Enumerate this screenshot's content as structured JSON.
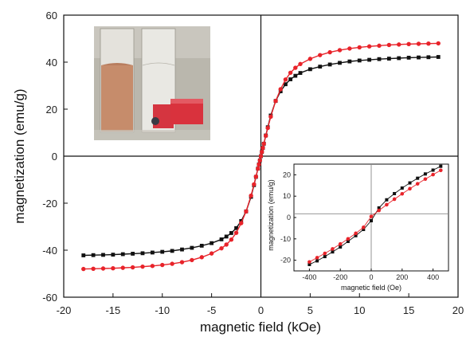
{
  "chart_data": [
    {
      "type": "scatter",
      "title": "",
      "xlabel": "magnetic field (kOe)",
      "ylabel": "magnetization (emu/g)",
      "xlim": [
        -20,
        20
      ],
      "ylim": [
        -60,
        60
      ],
      "xticks": [
        -20,
        -15,
        -10,
        -5,
        0,
        5,
        10,
        15,
        20
      ],
      "yticks": [
        -60,
        -40,
        -20,
        0,
        20,
        40,
        60
      ],
      "xtick_labels": [
        "-20",
        "-15",
        "-10",
        "-5",
        "0",
        "5",
        "10",
        "15",
        "20"
      ],
      "ytick_labels": [
        "-60",
        "-40",
        "-20",
        "0",
        "20",
        "40",
        "60"
      ],
      "grid": false,
      "legend": "none",
      "series": [
        {
          "color": "#111111",
          "marker": "square",
          "x": [
            -18,
            -17,
            -16,
            -15,
            -14,
            -13,
            -12,
            -11,
            -10,
            -9,
            -8,
            -7,
            -6,
            -5,
            -4,
            -3.5,
            -3,
            -2.5,
            -2,
            -1.5,
            -1,
            -0.7,
            -0.5,
            -0.3,
            -0.2,
            -0.1,
            0,
            0.1,
            0.2,
            0.3,
            0.5,
            0.7,
            1,
            1.5,
            2,
            2.5,
            3,
            3.5,
            4,
            5,
            6,
            7,
            8,
            9,
            10,
            11,
            12,
            13,
            14,
            15,
            16,
            17,
            18
          ],
          "y": [
            -42.2,
            -42.1,
            -42,
            -41.9,
            -41.7,
            -41.5,
            -41.3,
            -41,
            -40.7,
            -40.3,
            -39.7,
            -39,
            -38.1,
            -37,
            -35.4,
            -34.2,
            -32.7,
            -30.6,
            -27.6,
            -23.5,
            -17.3,
            -12.3,
            -8.8,
            -5.3,
            -3.5,
            -1.8,
            0,
            1.8,
            3.5,
            5.3,
            8.8,
            12.3,
            17.3,
            23.5,
            27.6,
            30.6,
            32.7,
            34.2,
            35.4,
            37,
            38.1,
            39,
            39.7,
            40.3,
            40.7,
            41,
            41.3,
            41.5,
            41.7,
            41.9,
            42,
            42.1,
            42.2
          ]
        },
        {
          "color": "#e8232a",
          "marker": "circle",
          "x": [
            -18,
            -17,
            -16,
            -15,
            -14,
            -13,
            -12,
            -11,
            -10,
            -9,
            -8,
            -7,
            -6,
            -5,
            -4,
            -3.5,
            -3,
            -2.5,
            -2,
            -1.5,
            -1,
            -0.7,
            -0.5,
            -0.3,
            -0.2,
            -0.1,
            0,
            0.1,
            0.2,
            0.3,
            0.5,
            0.7,
            1,
            1.5,
            2,
            2.5,
            3,
            3.5,
            4,
            5,
            6,
            7,
            8,
            9,
            10,
            11,
            12,
            13,
            14,
            15,
            16,
            17,
            18
          ],
          "y": [
            -48,
            -47.9,
            -47.8,
            -47.7,
            -47.5,
            -47.3,
            -47,
            -46.7,
            -46.3,
            -45.8,
            -45.1,
            -44.2,
            -43,
            -41.4,
            -39.2,
            -37.6,
            -35.5,
            -32.6,
            -28.5,
            -23.5,
            -16.8,
            -12,
            -8.7,
            -5.3,
            -3.5,
            -1.8,
            0,
            1.8,
            3.5,
            5.3,
            8.7,
            12,
            16.8,
            23.5,
            28.5,
            32.6,
            35.5,
            37.6,
            39.2,
            41.4,
            43,
            44.2,
            45.1,
            45.8,
            46.3,
            46.7,
            47,
            47.3,
            47.5,
            47.7,
            47.8,
            47.9,
            48
          ]
        }
      ]
    },
    {
      "type": "scatter",
      "title": "",
      "xlabel": "magnetic field (Oe)",
      "ylabel": "magnetization (emu/g)",
      "xlim": [
        -500,
        500
      ],
      "ylim": [
        -25,
        25
      ],
      "xticks": [
        -400,
        -200,
        0,
        200,
        400
      ],
      "yticks": [
        -20,
        -10,
        0,
        10,
        20
      ],
      "xtick_labels": [
        "-400",
        "-200",
        "0",
        "200",
        "400"
      ],
      "ytick_labels": [
        "-20",
        "-10",
        "0",
        "10",
        "20"
      ],
      "grid": false,
      "legend": "none",
      "series": [
        {
          "color": "#111111",
          "marker": "square",
          "x": [
            -400,
            -350,
            -300,
            -250,
            -200,
            -150,
            -100,
            -50,
            0,
            50,
            100,
            150,
            200,
            250,
            300,
            350,
            400,
            450
          ],
          "y": [
            -22,
            -20.3,
            -18.3,
            -16.1,
            -13.8,
            -11.2,
            -8.5,
            -5.6,
            -1.5,
            4.5,
            8.3,
            11.2,
            13.8,
            16.2,
            18.4,
            20.4,
            22.2,
            24
          ]
        },
        {
          "color": "#e8232a",
          "marker": "circle",
          "x": [
            -400,
            -350,
            -300,
            -250,
            -200,
            -150,
            -100,
            -50,
            0,
            50,
            100,
            150,
            200,
            250,
            300,
            350,
            400,
            450
          ],
          "y": [
            -20.8,
            -18.8,
            -16.8,
            -14.7,
            -12.4,
            -10,
            -7.4,
            -4.6,
            0.5,
            3.3,
            6,
            8.6,
            11.1,
            13.5,
            15.8,
            18,
            20.1,
            22.1
          ]
        }
      ]
    }
  ],
  "inset_photo": {
    "description_icon": "photo-of-two-vials",
    "colors": {
      "background": "#b9b6ac",
      "liquid": "#c98f6e",
      "red_block": "#d9323d"
    }
  }
}
